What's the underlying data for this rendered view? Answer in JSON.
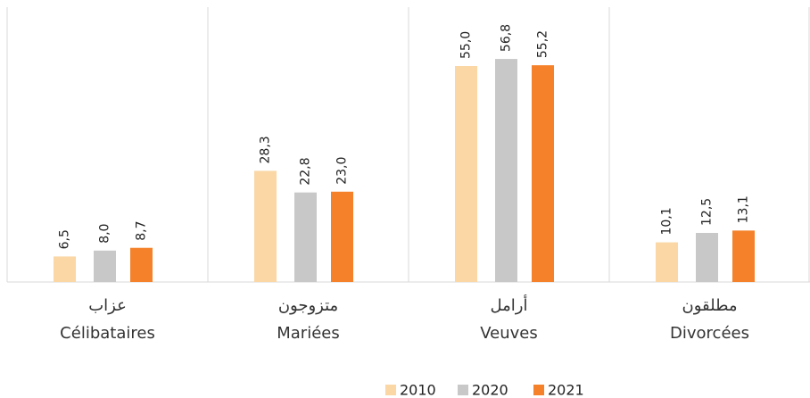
{
  "chart_data": {
    "type": "bar",
    "categories": [
      [
        "عزاب",
        "Célibataires"
      ],
      [
        "متزوجون",
        "Mariées"
      ],
      [
        "أرامل",
        "Veuves"
      ],
      [
        "مطلقون",
        "Divorcées"
      ]
    ],
    "series": [
      {
        "name": "2010",
        "color": "#FAD7A5",
        "values": [
          6.5,
          28.3,
          55.0,
          10.1
        ],
        "value_labels": [
          "6,5",
          "28,3",
          "55,0",
          "10,1"
        ]
      },
      {
        "name": "2020",
        "color": "#C8C8C8",
        "values": [
          8.0,
          22.8,
          56.8,
          12.5
        ],
        "value_labels": [
          "8,0",
          "22,8",
          "56,8",
          "12,5"
        ]
      },
      {
        "name": "2021",
        "color": "#F5822A",
        "values": [
          8.7,
          23.0,
          55.2,
          13.1
        ],
        "value_labels": [
          "8,7",
          "23,0",
          "55,2",
          "13,1"
        ]
      }
    ],
    "legend": "bottom"
  }
}
